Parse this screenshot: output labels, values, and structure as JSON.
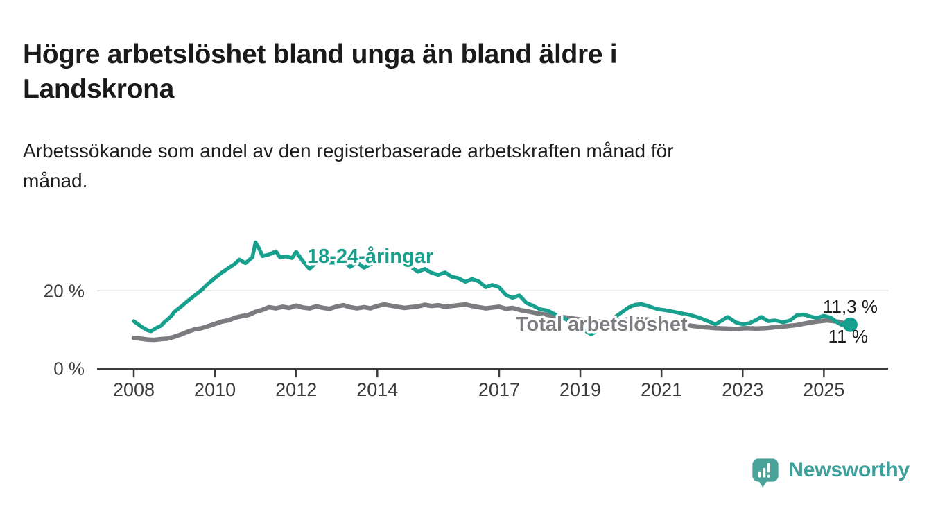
{
  "header": {
    "title": "Högre arbetslöshet bland unga än bland äldre i Landskrona",
    "title_lines": [
      "Högre arbetslöshet bland unga än bland äldre i",
      "Landskrona"
    ],
    "subtitle": "Arbetssökande som andel av den registerbaserade arbetskraften månad för månad.",
    "subtitle_lines": [
      "Arbetssökande som andel av den registerbaserade arbetskraften månad för",
      "månad."
    ]
  },
  "chart_data": {
    "type": "line",
    "title": "Högre arbetslöshet bland unga än bland äldre i Landskrona",
    "subtitle": "Arbetssökande som andel av den registerbaserade arbetskraften månad för månad.",
    "unit": "%",
    "x_axis": {
      "ticks": [
        2008,
        2010,
        2012,
        2014,
        2017,
        2019,
        2021,
        2023,
        2025
      ],
      "tick_labels": [
        "2008",
        "2010",
        "2012",
        "2014",
        "2017",
        "2019",
        "2021",
        "2023",
        "2025"
      ],
      "range": [
        2007.1,
        2026.6
      ]
    },
    "y_axis": {
      "ticks": [
        0,
        20
      ],
      "tick_labels": [
        "0 %",
        "20 %"
      ],
      "range": [
        0,
        33
      ],
      "grid_at": [
        20
      ]
    },
    "legend_position": "inline-labels",
    "colors": {
      "grid": "#d9d9d9",
      "axis": "#3c3c3c",
      "axis_text": "#3a3a3a",
      "value_label": "#1d1d1d",
      "background": "#ffffff"
    },
    "series": [
      {
        "id": "youth",
        "name": "18-24-åringar",
        "color": "#17a08d",
        "end_label": "11,3 %",
        "end_value": 11.3,
        "points": [
          [
            2008.0,
            12.2
          ],
          [
            2008.08,
            11.6
          ],
          [
            2008.17,
            10.9
          ],
          [
            2008.25,
            10.4
          ],
          [
            2008.33,
            9.9
          ],
          [
            2008.42,
            9.6
          ],
          [
            2008.5,
            10.1
          ],
          [
            2008.58,
            10.6
          ],
          [
            2008.67,
            11.0
          ],
          [
            2008.75,
            11.9
          ],
          [
            2008.83,
            12.6
          ],
          [
            2008.92,
            13.5
          ],
          [
            2009.0,
            14.6
          ],
          [
            2009.17,
            16.0
          ],
          [
            2009.33,
            17.4
          ],
          [
            2009.5,
            18.8
          ],
          [
            2009.67,
            20.2
          ],
          [
            2009.83,
            21.8
          ],
          [
            2010.0,
            23.3
          ],
          [
            2010.17,
            24.7
          ],
          [
            2010.33,
            25.8
          ],
          [
            2010.5,
            27.0
          ],
          [
            2010.6,
            28.0
          ],
          [
            2010.75,
            27.1
          ],
          [
            2010.92,
            28.6
          ],
          [
            2011.0,
            32.4
          ],
          [
            2011.08,
            31.0
          ],
          [
            2011.17,
            28.9
          ],
          [
            2011.33,
            29.3
          ],
          [
            2011.5,
            30.1
          ],
          [
            2011.6,
            28.6
          ],
          [
            2011.75,
            28.8
          ],
          [
            2011.9,
            28.4
          ],
          [
            2012.0,
            30.0
          ],
          [
            2012.15,
            27.8
          ],
          [
            2012.33,
            25.6
          ],
          [
            2012.5,
            27.3
          ],
          [
            2012.67,
            27.9
          ],
          [
            2012.83,
            27.2
          ],
          [
            2013.0,
            27.2
          ],
          [
            2013.17,
            27.6
          ],
          [
            2013.33,
            26.1
          ],
          [
            2013.5,
            27.3
          ],
          [
            2013.67,
            25.9
          ],
          [
            2013.83,
            26.8
          ],
          [
            2014.0,
            27.7
          ],
          [
            2014.17,
            28.8
          ],
          [
            2014.33,
            29.3
          ],
          [
            2014.5,
            28.2
          ],
          [
            2014.67,
            27.3
          ],
          [
            2014.83,
            26.1
          ],
          [
            2015.0,
            24.9
          ],
          [
            2015.17,
            25.6
          ],
          [
            2015.33,
            24.6
          ],
          [
            2015.5,
            24.1
          ],
          [
            2015.67,
            24.7
          ],
          [
            2015.83,
            23.6
          ],
          [
            2016.0,
            23.2
          ],
          [
            2016.17,
            22.3
          ],
          [
            2016.33,
            23.0
          ],
          [
            2016.5,
            22.4
          ],
          [
            2016.67,
            20.9
          ],
          [
            2016.83,
            21.5
          ],
          [
            2017.0,
            20.9
          ],
          [
            2017.17,
            18.9
          ],
          [
            2017.33,
            18.2
          ],
          [
            2017.5,
            18.8
          ],
          [
            2017.67,
            16.9
          ],
          [
            2017.83,
            16.2
          ],
          [
            2018.0,
            15.3
          ],
          [
            2018.2,
            14.9
          ],
          [
            2018.4,
            13.8
          ],
          [
            2018.6,
            12.9
          ],
          [
            2018.8,
            11.9
          ],
          [
            2019.0,
            10.5
          ],
          [
            2019.27,
            8.8
          ],
          [
            2019.5,
            10.5
          ],
          [
            2019.75,
            12.5
          ],
          [
            2020.0,
            14.3
          ],
          [
            2020.2,
            15.8
          ],
          [
            2020.35,
            16.4
          ],
          [
            2020.5,
            16.6
          ],
          [
            2020.7,
            16.0
          ],
          [
            2020.9,
            15.3
          ],
          [
            2021.1,
            15.0
          ],
          [
            2021.3,
            14.6
          ],
          [
            2021.5,
            14.2
          ],
          [
            2021.7,
            13.8
          ],
          [
            2021.9,
            13.2
          ],
          [
            2022.1,
            12.4
          ],
          [
            2022.33,
            11.4
          ],
          [
            2022.46,
            12.2
          ],
          [
            2022.63,
            13.3
          ],
          [
            2022.83,
            11.9
          ],
          [
            2023.0,
            11.4
          ],
          [
            2023.17,
            11.7
          ],
          [
            2023.33,
            12.5
          ],
          [
            2023.46,
            13.3
          ],
          [
            2023.63,
            12.2
          ],
          [
            2023.8,
            12.4
          ],
          [
            2024.0,
            11.9
          ],
          [
            2024.17,
            12.4
          ],
          [
            2024.33,
            13.7
          ],
          [
            2024.5,
            13.9
          ],
          [
            2024.67,
            13.4
          ],
          [
            2024.83,
            13.0
          ],
          [
            2025.0,
            13.6
          ],
          [
            2025.17,
            13.1
          ],
          [
            2025.33,
            11.9
          ],
          [
            2025.45,
            11.2
          ],
          [
            2025.55,
            12.0
          ],
          [
            2025.65,
            11.3
          ]
        ]
      },
      {
        "id": "total",
        "name": "Total arbetslöshet",
        "color": "#7b7b80",
        "end_label": "11 %",
        "end_value": 11.0,
        "points": [
          [
            2008.0,
            7.9
          ],
          [
            2008.17,
            7.7
          ],
          [
            2008.33,
            7.5
          ],
          [
            2008.5,
            7.4
          ],
          [
            2008.67,
            7.6
          ],
          [
            2008.83,
            7.7
          ],
          [
            2009.0,
            8.2
          ],
          [
            2009.17,
            8.8
          ],
          [
            2009.33,
            9.5
          ],
          [
            2009.5,
            10.1
          ],
          [
            2009.67,
            10.4
          ],
          [
            2009.83,
            10.9
          ],
          [
            2010.0,
            11.5
          ],
          [
            2010.17,
            12.1
          ],
          [
            2010.33,
            12.4
          ],
          [
            2010.5,
            13.1
          ],
          [
            2010.67,
            13.5
          ],
          [
            2010.83,
            13.8
          ],
          [
            2011.0,
            14.6
          ],
          [
            2011.17,
            15.1
          ],
          [
            2011.33,
            15.8
          ],
          [
            2011.5,
            15.5
          ],
          [
            2011.67,
            15.9
          ],
          [
            2011.83,
            15.6
          ],
          [
            2012.0,
            16.2
          ],
          [
            2012.17,
            15.7
          ],
          [
            2012.33,
            15.5
          ],
          [
            2012.5,
            16.0
          ],
          [
            2012.67,
            15.6
          ],
          [
            2012.83,
            15.4
          ],
          [
            2013.0,
            16.0
          ],
          [
            2013.17,
            16.3
          ],
          [
            2013.33,
            15.8
          ],
          [
            2013.5,
            15.5
          ],
          [
            2013.67,
            15.8
          ],
          [
            2013.83,
            15.5
          ],
          [
            2014.0,
            16.1
          ],
          [
            2014.17,
            16.5
          ],
          [
            2014.33,
            16.2
          ],
          [
            2014.5,
            15.9
          ],
          [
            2014.67,
            15.6
          ],
          [
            2014.83,
            15.8
          ],
          [
            2015.0,
            16.0
          ],
          [
            2015.17,
            16.4
          ],
          [
            2015.33,
            16.1
          ],
          [
            2015.5,
            16.3
          ],
          [
            2015.67,
            15.9
          ],
          [
            2015.83,
            16.1
          ],
          [
            2016.0,
            16.3
          ],
          [
            2016.17,
            16.5
          ],
          [
            2016.33,
            16.1
          ],
          [
            2016.5,
            15.8
          ],
          [
            2016.67,
            15.5
          ],
          [
            2016.83,
            15.7
          ],
          [
            2017.0,
            15.9
          ],
          [
            2017.17,
            15.4
          ],
          [
            2017.33,
            15.6
          ],
          [
            2017.5,
            15.1
          ],
          [
            2017.75,
            14.6
          ],
          [
            2018.0,
            14.1
          ],
          [
            2018.33,
            13.6
          ],
          [
            2018.67,
            13.1
          ],
          [
            2019.0,
            12.6
          ],
          [
            2019.33,
            12.2
          ],
          [
            2019.67,
            12.0
          ],
          [
            2020.0,
            12.4
          ],
          [
            2020.33,
            12.9
          ],
          [
            2020.67,
            12.6
          ],
          [
            2021.0,
            12.1
          ],
          [
            2021.33,
            11.6
          ],
          [
            2021.67,
            11.1
          ],
          [
            2022.0,
            10.7
          ],
          [
            2022.33,
            10.4
          ],
          [
            2022.58,
            10.3
          ],
          [
            2022.83,
            10.2
          ],
          [
            2023.08,
            10.4
          ],
          [
            2023.33,
            10.3
          ],
          [
            2023.58,
            10.4
          ],
          [
            2023.83,
            10.7
          ],
          [
            2024.08,
            10.9
          ],
          [
            2024.33,
            11.2
          ],
          [
            2024.58,
            11.7
          ],
          [
            2024.83,
            12.1
          ],
          [
            2025.08,
            12.4
          ],
          [
            2025.33,
            12.1
          ],
          [
            2025.5,
            11.7
          ],
          [
            2025.65,
            11.0
          ]
        ]
      }
    ]
  },
  "footer": {
    "brand": "Newsworthy",
    "brand_color": "#3ea09a"
  }
}
